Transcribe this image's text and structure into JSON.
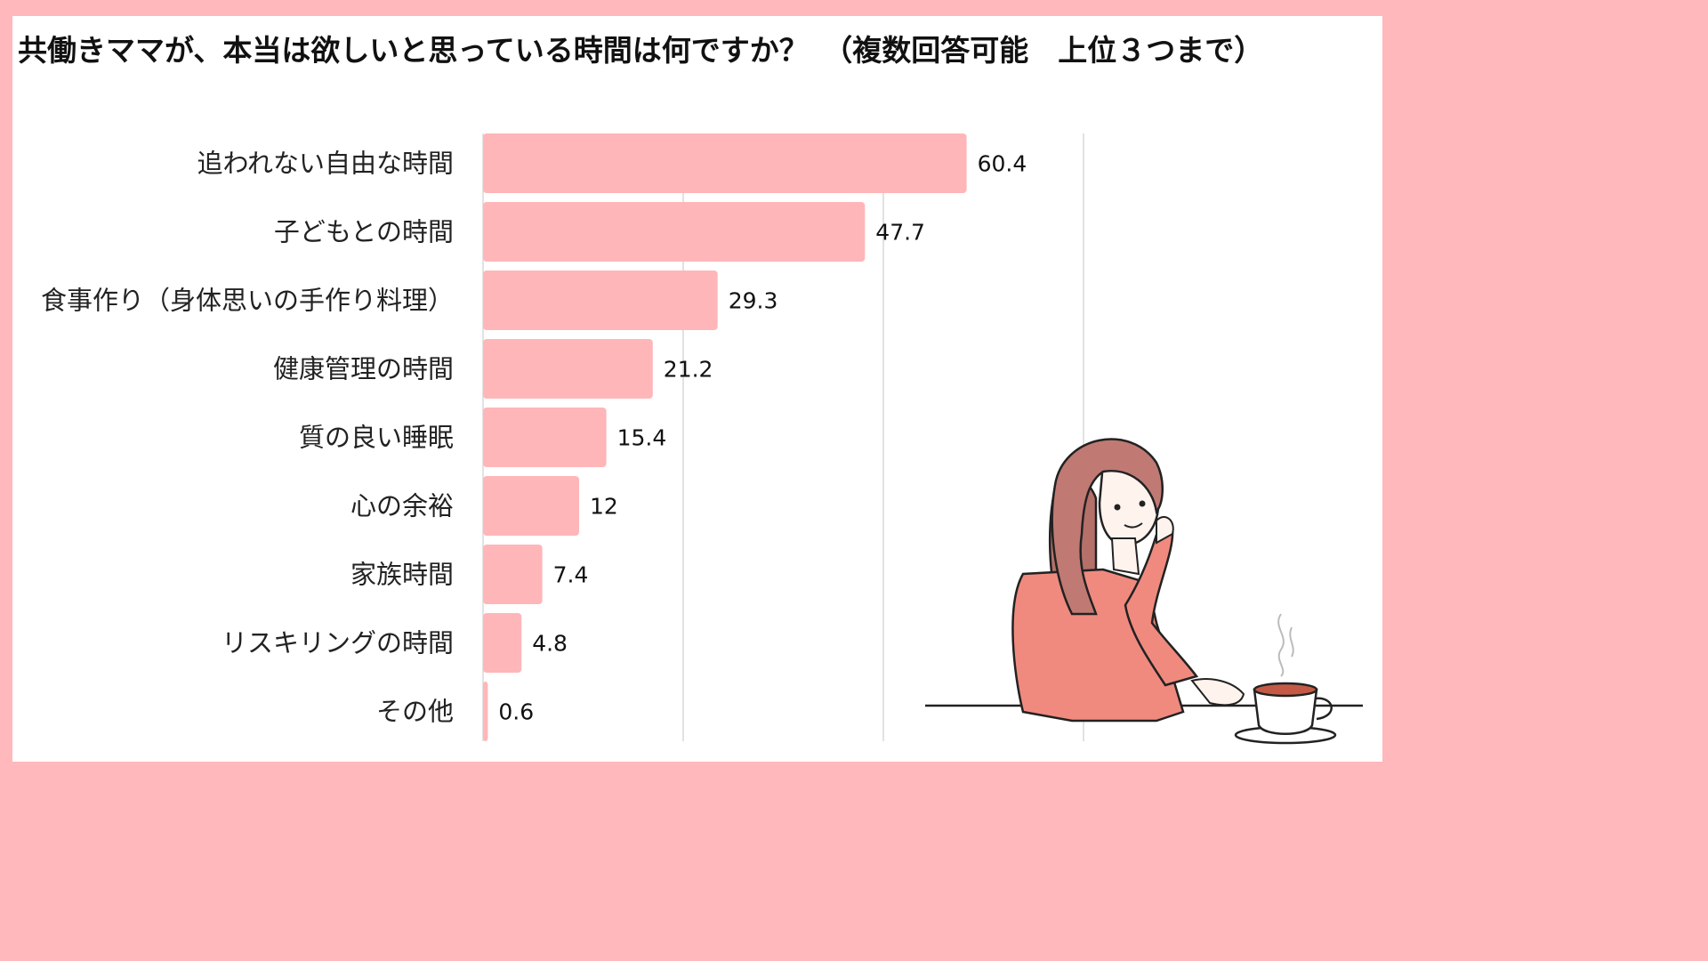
{
  "chart_data": {
    "type": "bar",
    "orientation": "horizontal",
    "title": "共働きママが、本当は欲しいと思っている時間は何ですか？　（複数回答可能　上位３つまで）",
    "categories": [
      "追われない自由な時間",
      "子どもとの時間",
      "食事作り（身体思いの手作り料理）",
      "健康管理の時間",
      "質の良い睡眠",
      "心の余裕",
      "家族時間",
      "リスキリングの時間",
      "その他"
    ],
    "values": [
      60.4,
      47.7,
      29.3,
      21.2,
      15.4,
      12,
      7.4,
      4.8,
      0.6
    ],
    "value_labels": [
      "60.4",
      "47.7",
      "29.3",
      "21.2",
      "15.4",
      "12",
      "7.4",
      "4.8",
      "0.6"
    ],
    "xlim": [
      0,
      75
    ],
    "grid": true,
    "bar_color": "#ffb6b9",
    "background_color": "#ffb8bc"
  }
}
